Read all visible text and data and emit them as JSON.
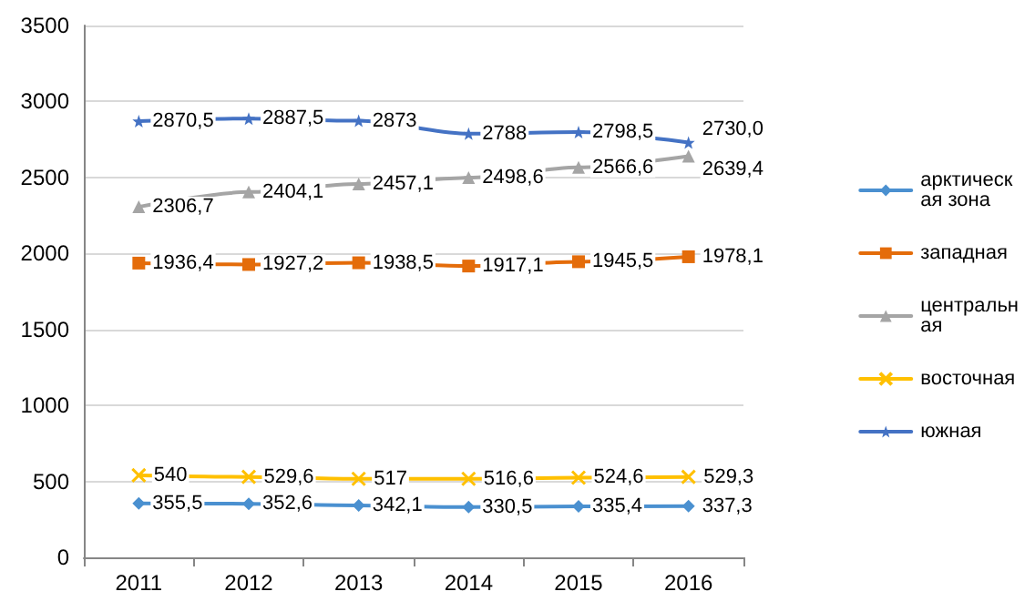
{
  "chart_data": {
    "type": "line",
    "categories": [
      "2011",
      "2012",
      "2013",
      "2014",
      "2015",
      "2016"
    ],
    "ylim": [
      0,
      3500
    ],
    "yticks": [
      0,
      500,
      1000,
      1500,
      2000,
      2500,
      3000,
      3500
    ],
    "grid": "y",
    "legend": "right",
    "series": [
      {
        "name": "арктическая зона",
        "color": "#4a90d0",
        "marker": "diamond",
        "values": [
          355.5,
          352.6,
          342.1,
          330.5,
          335.4,
          337.3
        ],
        "value_labels": [
          "355,5",
          "352,6",
          "342,1",
          "330,5",
          "335,4",
          "337,3"
        ]
      },
      {
        "name": "западная",
        "color": "#e46c0a",
        "marker": "square",
        "values": [
          1936.4,
          1927.2,
          1938.5,
          1917.1,
          1945.5,
          1978.1
        ],
        "value_labels": [
          "1936,4",
          "1927,2",
          "1938,5",
          "1917,1",
          "1945,5",
          "1978,1"
        ]
      },
      {
        "name": "центральная",
        "color": "#a5a5a5",
        "marker": "triangle",
        "values": [
          2306.7,
          2404.1,
          2457.1,
          2498.6,
          2566.6,
          2639.4
        ],
        "value_labels": [
          "2306,7",
          "2404,1",
          "2457,1",
          "2498,6",
          "2566,6",
          "2639,4"
        ]
      },
      {
        "name": "восточная",
        "color": "#ffc000",
        "marker": "cross",
        "values": [
          540,
          529.6,
          517,
          516.6,
          524.6,
          529.3
        ],
        "value_labels": [
          "540",
          "529,6",
          "517",
          "516,6",
          "524,6",
          "529,3"
        ]
      },
      {
        "name": "южная",
        "color": "#4472c4",
        "marker": "star",
        "values": [
          2870.5,
          2887.5,
          2873,
          2788,
          2798.5,
          2730.0
        ],
        "value_labels": [
          "2870,5",
          "2887,5",
          "2873",
          "2788",
          "2798,5",
          "2730,0"
        ]
      }
    ]
  }
}
